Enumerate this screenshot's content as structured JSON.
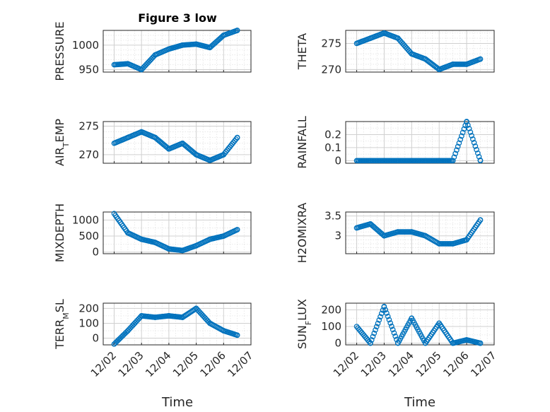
{
  "figure": {
    "title": "Figure 3 low",
    "xlabel_left": "Time",
    "xlabel_right": "Time"
  },
  "x_ticks": [
    "12/02",
    "12/03",
    "12/04",
    "12/05",
    "12/06",
    "12/07"
  ],
  "marker_color": "#0072BD",
  "chart_data": [
    {
      "id": "pressure",
      "type": "scatter",
      "ylabel": "PRESSURE",
      "ylabel_sub": "",
      "ylabel_after": "",
      "ylim": [
        945,
        1030
      ],
      "yticks": [
        950,
        1000
      ],
      "ytick_labels": [
        "950",
        "1000"
      ],
      "yminor": [
        960,
        970,
        980,
        990,
        1010,
        1020
      ],
      "x": [
        2.0,
        2.5,
        3.0,
        3.5,
        4.0,
        4.5,
        5.0,
        5.5,
        6.0,
        6.5
      ],
      "y": [
        960,
        962,
        950,
        980,
        992,
        1000,
        1002,
        995,
        1020,
        1030
      ],
      "row": 0,
      "col": 0
    },
    {
      "id": "theta",
      "type": "scatter",
      "ylabel": "THETA",
      "ylabel_sub": "",
      "ylabel_after": "",
      "ylim": [
        269.5,
        277.5
      ],
      "yticks": [
        270,
        275
      ],
      "ytick_labels": [
        "270",
        "275"
      ],
      "yminor": [
        271,
        272,
        273,
        274,
        276,
        277
      ],
      "x": [
        2.0,
        2.5,
        3.0,
        3.5,
        4.0,
        4.5,
        5.0,
        5.5,
        6.0,
        6.5
      ],
      "y": [
        275,
        276,
        277,
        276,
        273,
        272,
        270,
        271,
        271,
        272
      ],
      "row": 0,
      "col": 1
    },
    {
      "id": "airtemp",
      "type": "scatter",
      "ylabel": "AIR",
      "ylabel_sub": "T",
      "ylabel_after": "EMP",
      "ylim": [
        268.5,
        275.8
      ],
      "yticks": [
        270,
        275
      ],
      "ytick_labels": [
        "270",
        "275"
      ],
      "yminor": [
        271,
        272,
        273,
        274
      ],
      "x": [
        2.0,
        2.5,
        3.0,
        3.5,
        4.0,
        4.5,
        5.0,
        5.5,
        6.0,
        6.5
      ],
      "y": [
        272,
        273,
        274,
        273,
        271,
        272,
        270,
        269,
        270,
        273
      ],
      "row": 1,
      "col": 0
    },
    {
      "id": "rainfall",
      "type": "scatter",
      "ylabel": "RAINFALL",
      "ylabel_sub": "",
      "ylabel_after": "",
      "ylim": [
        -0.02,
        0.3
      ],
      "yticks": [
        0,
        0.1,
        0.2
      ],
      "ytick_labels": [
        "0",
        "0.1",
        "0.2"
      ],
      "yminor": [
        0.05,
        0.15,
        0.25
      ],
      "x": [
        2.0,
        2.5,
        3.0,
        3.5,
        4.0,
        4.5,
        5.0,
        5.5,
        6.0,
        6.5
      ],
      "y": [
        0,
        0,
        0,
        0,
        0,
        0,
        0,
        0,
        0.3,
        0
      ],
      "row": 1,
      "col": 1
    },
    {
      "id": "mixdepth",
      "type": "scatter",
      "ylabel": "MIXDEPTH",
      "ylabel_sub": "",
      "ylabel_after": "",
      "ylim": [
        -50,
        1250
      ],
      "yticks": [
        0,
        500,
        1000
      ],
      "ytick_labels": [
        "0",
        "500",
        "1000"
      ],
      "yminor": [
        250,
        750
      ],
      "x": [
        2.0,
        2.5,
        3.0,
        3.5,
        4.0,
        4.5,
        5.0,
        5.5,
        6.0,
        6.5
      ],
      "y": [
        1200,
        600,
        400,
        300,
        100,
        50,
        200,
        400,
        500,
        700
      ],
      "row": 2,
      "col": 0
    },
    {
      "id": "h2omixra",
      "type": "scatter",
      "ylabel": "H2OMIXRA",
      "ylabel_sub": "",
      "ylabel_after": "",
      "ylim": [
        2.55,
        3.6
      ],
      "yticks": [
        3,
        3.5
      ],
      "ytick_labels": [
        "3",
        "3.5"
      ],
      "yminor": [
        2.6,
        2.7,
        2.8,
        2.9,
        3.1,
        3.2,
        3.3,
        3.4
      ],
      "x": [
        2.0,
        2.5,
        3.0,
        3.5,
        4.0,
        4.5,
        5.0,
        5.5,
        6.0,
        6.5
      ],
      "y": [
        3.2,
        3.3,
        3.0,
        3.1,
        3.1,
        3.0,
        2.8,
        2.8,
        2.9,
        3.4
      ],
      "row": 2,
      "col": 1
    },
    {
      "id": "terrmsl",
      "type": "scatter",
      "ylabel": "TERR",
      "ylabel_sub": "M",
      "ylabel_after": "SL",
      "ylim": [
        -45,
        235
      ],
      "yticks": [
        0,
        100,
        200
      ],
      "ytick_labels": [
        "0",
        "100",
        "200"
      ],
      "yminor": [
        50,
        150
      ],
      "x": [
        2.0,
        2.5,
        3.0,
        3.5,
        4.0,
        4.5,
        5.0,
        5.5,
        6.0,
        6.5
      ],
      "y": [
        -40,
        50,
        150,
        140,
        150,
        140,
        200,
        100,
        50,
        20
      ],
      "row": 3,
      "col": 0
    },
    {
      "id": "sunflux",
      "type": "scatter",
      "ylabel": "SUN",
      "ylabel_sub": "F",
      "ylabel_after": "LUX",
      "ylim": [
        -10,
        240
      ],
      "yticks": [
        0,
        100,
        200
      ],
      "ytick_labels": [
        "0",
        "100",
        "200"
      ],
      "yminor": [
        50,
        150
      ],
      "x": [
        2.0,
        2.5,
        3.0,
        3.5,
        4.0,
        4.5,
        5.0,
        5.5,
        6.0,
        6.5
      ],
      "y": [
        100,
        0,
        220,
        0,
        150,
        0,
        120,
        0,
        20,
        0
      ],
      "row": 3,
      "col": 1
    }
  ]
}
